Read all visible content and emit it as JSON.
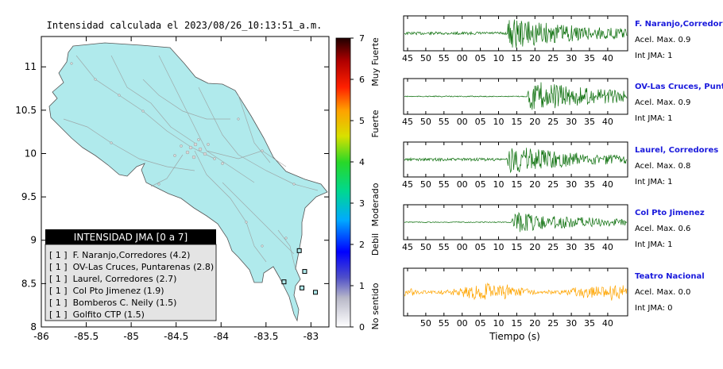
{
  "map": {
    "title": "Intensidad calculada el 2023/08/26_10:13:51_a.m.",
    "x_ticks": [
      "-86",
      "-85.5",
      "-85",
      "-84.5",
      "-84",
      "-83.5",
      "-83"
    ],
    "y_ticks": [
      "11",
      "10.5",
      "10",
      "9.5",
      "9",
      "8.5",
      "8"
    ],
    "xlim": [
      -86,
      -82.8
    ],
    "ylim": [
      8,
      11.35
    ]
  },
  "colorbar": {
    "ticks": [
      "0",
      "1",
      "2",
      "3",
      "4",
      "5",
      "6",
      "7"
    ],
    "labels": [
      "No sentido",
      "Debil",
      "Moderado",
      "Fuerte",
      "Muy Fuerte"
    ],
    "range": [
      0,
      7
    ]
  },
  "legend": {
    "title": "INTENSIDAD JMA [0 a 7]",
    "entries": [
      "[ 1 ]  F. Naranjo,Corredores (4.2)",
      "[ 1 ]  OV-Las Cruces, Puntarenas (2.8)",
      "[ 1 ]  Laurel, Corredores (2.7)",
      "[ 1 ]  Col Pto Jimenez (1.9)",
      "[ 1 ]  Bomberos C. Neily (1.5)",
      "[ 1 ]  Golfito CTP (1.5)"
    ]
  },
  "colors": {
    "land": "#b0eaec",
    "wave_green": "#0a6e0a",
    "wave_orange": "#ffa500",
    "station_name": "#1a1adc"
  },
  "chart_data": [
    {
      "type": "scatter",
      "title": "Intensidad calculada el 2023/08/26_10:13:51_a.m.",
      "xlim": [
        -86,
        -82.8
      ],
      "ylim": [
        8,
        11.35
      ],
      "x_ticks": [
        -86,
        -85.5,
        -85,
        -84.5,
        -84,
        -83.5,
        -83
      ],
      "y_ticks": [
        8,
        8.5,
        9,
        9.5,
        10,
        10.5,
        11
      ],
      "stations_marked": [
        {
          "x": -83.13,
          "y": 8.88
        },
        {
          "x": -83.07,
          "y": 8.64
        },
        {
          "x": -83.3,
          "y": 8.52
        },
        {
          "x": -83.1,
          "y": 8.45
        },
        {
          "x": -82.95,
          "y": 8.4
        }
      ]
    },
    {
      "type": "line",
      "x_ticks": [
        "45",
        "50",
        "55",
        "00",
        "05",
        "10",
        "15",
        "20",
        "25",
        "30",
        "35",
        "40"
      ],
      "xlabel": "Tiempo (s)",
      "traces": [
        {
          "name": "F. Naranjo,Corredores",
          "acel_label": "Acel. Max. 0.9",
          "jma_label": "Int JMA: 1",
          "onset": 12.5,
          "amp": 0.9,
          "color": "#0a6e0a"
        },
        {
          "name": "OV-Las Cruces, Puntarenas",
          "display_name": "OV-Las Cruces, Puntar",
          "acel_label": "Acel. Max. 0.9",
          "jma_label": "Int JMA: 1",
          "onset": 18,
          "amp": 0.9,
          "color": "#0a6e0a"
        },
        {
          "name": "Laurel, Corredores",
          "acel_label": "Acel. Max. 0.8",
          "jma_label": "Int JMA: 1",
          "onset": 12.5,
          "amp": 0.8,
          "color": "#0a6e0a"
        },
        {
          "name": "Col Pto Jimenez",
          "acel_label": "Acel. Max. 0.6",
          "jma_label": "Int JMA: 1",
          "onset": 13.5,
          "amp": 0.6,
          "color": "#0a6e0a"
        },
        {
          "name": "Teatro Nacional",
          "acel_label": "Acel. Max. 0.0",
          "jma_label": "Int JMA: 0",
          "onset": -17,
          "amp": 0.45,
          "color": "#ffa500"
        }
      ]
    }
  ]
}
